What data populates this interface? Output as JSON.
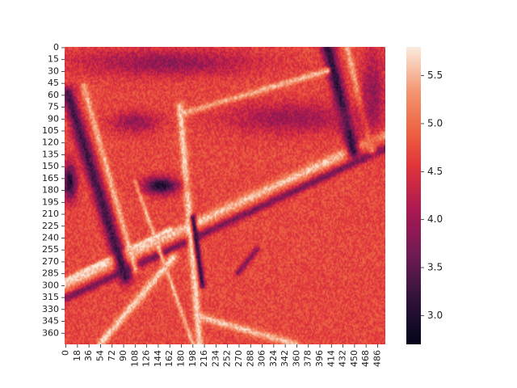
{
  "chart_data": {
    "type": "heatmap",
    "title": "",
    "xlabel": "",
    "ylabel": "",
    "x_ticks": [
      0,
      18,
      36,
      54,
      72,
      90,
      108,
      126,
      144,
      162,
      180,
      198,
      216,
      234,
      252,
      270,
      288,
      306,
      324,
      342,
      360,
      378,
      396,
      414,
      432,
      450,
      468,
      486
    ],
    "y_ticks": [
      0,
      15,
      30,
      45,
      60,
      75,
      90,
      105,
      120,
      135,
      150,
      165,
      180,
      195,
      210,
      225,
      240,
      255,
      270,
      285,
      300,
      315,
      330,
      345,
      360
    ],
    "x_range": [
      0,
      500
    ],
    "y_range": [
      0,
      375
    ],
    "colorbar": {
      "min": 2.7,
      "max": 5.8,
      "ticks": [
        3.0,
        3.5,
        4.0,
        4.5,
        5.0,
        5.5
      ],
      "tick_labels": [
        "3.0",
        "3.5",
        "4.0",
        "4.5",
        "5.0",
        "5.5"
      ]
    },
    "base_value": 4.7,
    "features": [
      {
        "kind": "line",
        "x1": 0,
        "y1": 300,
        "x2": 500,
        "y2": 110,
        "width": 8,
        "value": 5.6
      },
      {
        "kind": "line",
        "x1": 0,
        "y1": 318,
        "x2": 500,
        "y2": 128,
        "width": 6,
        "value": 3.7
      },
      {
        "kind": "line",
        "x1": 0,
        "y1": 295,
        "x2": 165,
        "y2": 230,
        "width": 4,
        "value": 5.8
      },
      {
        "kind": "line",
        "x1": 5,
        "y1": 60,
        "x2": 95,
        "y2": 290,
        "width": 12,
        "value": 3.3
      },
      {
        "kind": "line",
        "x1": 30,
        "y1": 50,
        "x2": 110,
        "y2": 280,
        "width": 6,
        "value": 5.5
      },
      {
        "kind": "line",
        "x1": 410,
        "y1": 0,
        "x2": 450,
        "y2": 130,
        "width": 12,
        "value": 3.1
      },
      {
        "kind": "line",
        "x1": 440,
        "y1": 0,
        "x2": 480,
        "y2": 130,
        "width": 6,
        "value": 5.5
      },
      {
        "kind": "line",
        "x1": 180,
        "y1": 85,
        "x2": 410,
        "y2": 30,
        "width": 5,
        "value": 5.6
      },
      {
        "kind": "line",
        "x1": 180,
        "y1": 75,
        "x2": 215,
        "y2": 420,
        "width": 7,
        "value": 5.7
      },
      {
        "kind": "line",
        "x1": 200,
        "y1": 215,
        "x2": 215,
        "y2": 300,
        "width": 5,
        "value": 3.2
      },
      {
        "kind": "line",
        "x1": 55,
        "y1": 375,
        "x2": 170,
        "y2": 265,
        "width": 7,
        "value": 5.7
      },
      {
        "kind": "line",
        "x1": 110,
        "y1": 170,
        "x2": 200,
        "y2": 375,
        "width": 4,
        "value": 5.5
      },
      {
        "kind": "line",
        "x1": 210,
        "y1": 340,
        "x2": 360,
        "y2": 375,
        "width": 6,
        "value": 5.6
      },
      {
        "kind": "line",
        "x1": 270,
        "y1": 285,
        "x2": 300,
        "y2": 255,
        "width": 5,
        "value": 3.8
      },
      {
        "kind": "blob",
        "cx": 150,
        "cy": 175,
        "rx": 30,
        "ry": 12,
        "value": 3.0
      },
      {
        "kind": "blob",
        "cx": 8,
        "cy": 170,
        "rx": 12,
        "ry": 25,
        "value": 3.0
      },
      {
        "kind": "blob",
        "cx": 350,
        "cy": 90,
        "rx": 110,
        "ry": 22,
        "value": 4.0
      },
      {
        "kind": "blob",
        "cx": 480,
        "cy": 60,
        "rx": 20,
        "ry": 60,
        "value": 3.9
      },
      {
        "kind": "blob",
        "cx": 160,
        "cy": 20,
        "rx": 150,
        "ry": 18,
        "value": 3.9
      },
      {
        "kind": "blob",
        "cx": 110,
        "cy": 95,
        "rx": 40,
        "ry": 15,
        "value": 3.9
      }
    ]
  }
}
